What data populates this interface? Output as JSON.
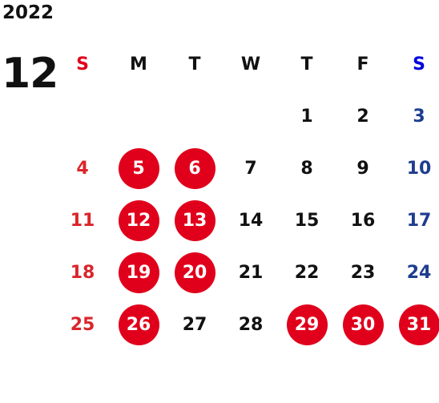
{
  "calendar": {
    "year": "2022",
    "month": "12",
    "weekdays": [
      "S",
      "M",
      "T",
      "W",
      "T",
      "F",
      "S"
    ],
    "weeks": [
      [
        {
          "day": ""
        },
        {
          "day": ""
        },
        {
          "day": ""
        },
        {
          "day": ""
        },
        {
          "day": "1"
        },
        {
          "day": "2"
        },
        {
          "day": "3"
        }
      ],
      [
        {
          "day": "4"
        },
        {
          "day": "5",
          "holiday": true
        },
        {
          "day": "6",
          "holiday": true
        },
        {
          "day": "7"
        },
        {
          "day": "8"
        },
        {
          "day": "9"
        },
        {
          "day": "10"
        }
      ],
      [
        {
          "day": "11"
        },
        {
          "day": "12",
          "holiday": true
        },
        {
          "day": "13",
          "holiday": true
        },
        {
          "day": "14"
        },
        {
          "day": "15"
        },
        {
          "day": "16"
        },
        {
          "day": "17"
        }
      ],
      [
        {
          "day": "18"
        },
        {
          "day": "19",
          "holiday": true
        },
        {
          "day": "20",
          "holiday": true
        },
        {
          "day": "21"
        },
        {
          "day": "22"
        },
        {
          "day": "23"
        },
        {
          "day": "24"
        }
      ],
      [
        {
          "day": "25"
        },
        {
          "day": "26",
          "holiday": true
        },
        {
          "day": "27"
        },
        {
          "day": "28"
        },
        {
          "day": "29",
          "holiday": true
        },
        {
          "day": "30",
          "holiday": true
        },
        {
          "day": "31",
          "holiday": true
        }
      ]
    ]
  },
  "colors": {
    "holiday_fill": "#e0001b",
    "sunday_header": "#e0001b",
    "saturday_header": "#0000dd",
    "sunday_date": "#d9252b",
    "saturday_date": "#1e3d8f",
    "text": "#111111"
  }
}
